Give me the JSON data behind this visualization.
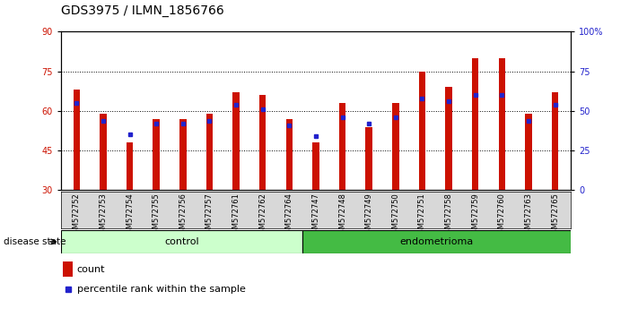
{
  "title": "GDS3975 / ILMN_1856766",
  "samples": [
    "GSM572752",
    "GSM572753",
    "GSM572754",
    "GSM572755",
    "GSM572756",
    "GSM572757",
    "GSM572761",
    "GSM572762",
    "GSM572764",
    "GSM572747",
    "GSM572748",
    "GSM572749",
    "GSM572750",
    "GSM572751",
    "GSM572758",
    "GSM572759",
    "GSM572760",
    "GSM572763",
    "GSM572765"
  ],
  "counts": [
    68,
    59,
    48,
    57,
    57,
    59,
    67,
    66,
    57,
    48,
    63,
    54,
    63,
    75,
    69,
    80,
    80,
    59,
    67
  ],
  "percentiles": [
    55,
    44,
    35,
    42,
    42,
    44,
    54,
    51,
    41,
    34,
    46,
    42,
    46,
    58,
    56,
    60,
    60,
    44,
    54
  ],
  "control_count": 9,
  "endometrioma_count": 10,
  "bar_color": "#cc1100",
  "percentile_color": "#2222cc",
  "y_min": 30,
  "y_max": 90,
  "y_ticks_left": [
    30,
    45,
    60,
    75,
    90
  ],
  "y_ticks_right": [
    0,
    25,
    50,
    75,
    100
  ],
  "control_label": "control",
  "endometrioma_label": "endometrioma",
  "disease_state_label": "disease state",
  "legend_count": "count",
  "legend_percentile": "percentile rank within the sample",
  "bg_color": "#d8d8d8",
  "plot_bg": "#ffffff",
  "control_bg": "#ccffcc",
  "endometrioma_bg": "#44bb44",
  "title_fontsize": 10,
  "tick_fontsize": 7,
  "label_fontsize": 8
}
